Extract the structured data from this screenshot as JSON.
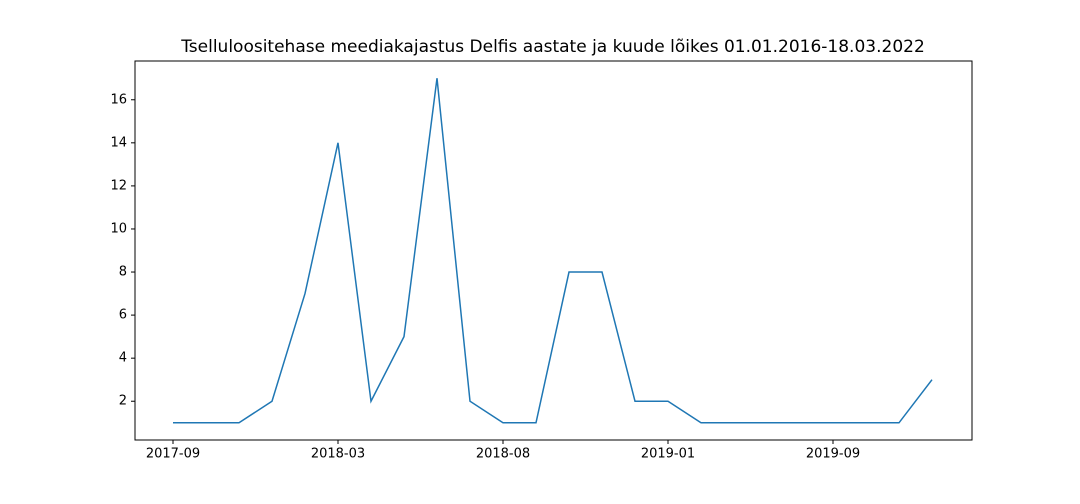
{
  "chart_data": {
    "type": "line",
    "title": "Tselluloositehase meediakajastus Delfis aastate ja kuude lõikes 01.01.2016-18.03.2022",
    "categories": [
      "2017-09",
      null,
      null,
      null,
      null,
      "2018-03",
      null,
      null,
      null,
      null,
      "2018-08",
      null,
      null,
      null,
      null,
      "2019-01",
      null,
      null,
      null,
      null,
      "2019-09",
      null,
      null,
      null
    ],
    "series": [
      {
        "name": null,
        "color": "#1f77b4",
        "values": [
          1,
          1,
          1,
          2,
          7,
          14,
          2,
          5,
          17,
          2,
          1,
          1,
          8,
          8,
          2,
          2,
          1,
          1,
          1,
          1,
          1,
          1,
          1,
          3
        ]
      }
    ],
    "ylim": [
      0.2,
      17.8
    ],
    "yticks": [
      2,
      4,
      6,
      8,
      10,
      12,
      14,
      16
    ],
    "grid": false
  }
}
